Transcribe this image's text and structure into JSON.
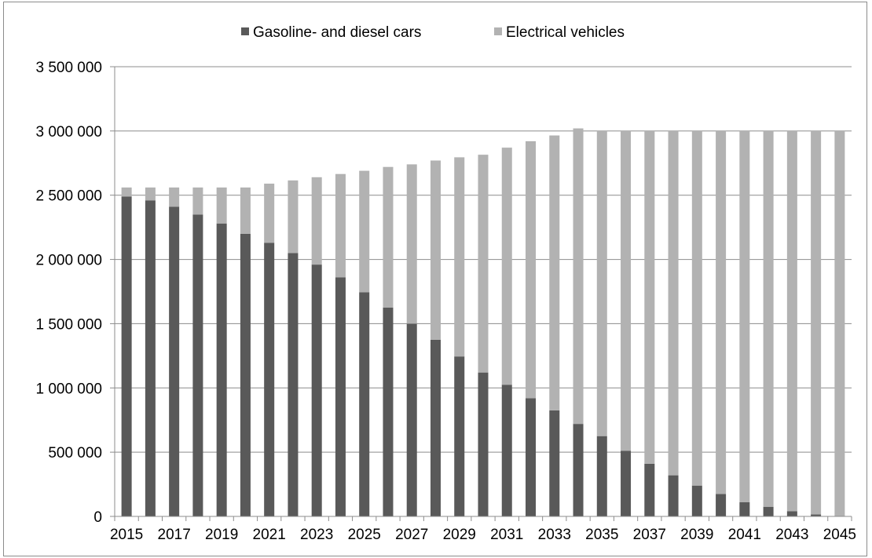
{
  "chart_data": {
    "type": "bar",
    "stacked": true,
    "categories": [
      "2015",
      "2016",
      "2017",
      "2018",
      "2019",
      "2020",
      "2021",
      "2022",
      "2023",
      "2024",
      "2025",
      "2026",
      "2027",
      "2028",
      "2029",
      "2030",
      "2031",
      "2032",
      "2033",
      "2034",
      "2035",
      "2036",
      "2037",
      "2038",
      "2039",
      "2040",
      "2041",
      "2042",
      "2043",
      "2044",
      "2045"
    ],
    "x_tick_labels": [
      "2015",
      "2017",
      "2019",
      "2021",
      "2023",
      "2025",
      "2027",
      "2029",
      "2031",
      "2033",
      "2035",
      "2037",
      "2039",
      "2041",
      "2043",
      "2045"
    ],
    "series": [
      {
        "name": "Gasoline- and diesel cars",
        "color": "#595959",
        "values": [
          2490000,
          2460000,
          2410000,
          2350000,
          2280000,
          2200000,
          2130000,
          2050000,
          1960000,
          1860000,
          1745000,
          1625000,
          1500000,
          1375000,
          1245000,
          1120000,
          1025000,
          920000,
          825000,
          720000,
          625000,
          510000,
          410000,
          320000,
          240000,
          175000,
          110000,
          75000,
          40000,
          15000,
          0
        ]
      },
      {
        "name": "Electrical vehicles",
        "color": "#b2b2b2",
        "values": [
          70000,
          100000,
          150000,
          210000,
          280000,
          360000,
          460000,
          565000,
          680000,
          805000,
          945000,
          1095000,
          1240000,
          1395000,
          1550000,
          1695000,
          1845000,
          2000000,
          2140000,
          2300000,
          2375000,
          2490000,
          2590000,
          2680000,
          2760000,
          2825000,
          2890000,
          2925000,
          2960000,
          2985000,
          3000000
        ]
      }
    ],
    "y_ticks": [
      "0",
      "500 000",
      "1 000 000",
      "1 500 000",
      "2 000 000",
      "2 500 000",
      "3 000 000",
      "3 500 000"
    ],
    "ylim": [
      0,
      3500000
    ],
    "grid": true,
    "legend_position": "top-center",
    "title": "",
    "xlabel": "",
    "ylabel": ""
  }
}
